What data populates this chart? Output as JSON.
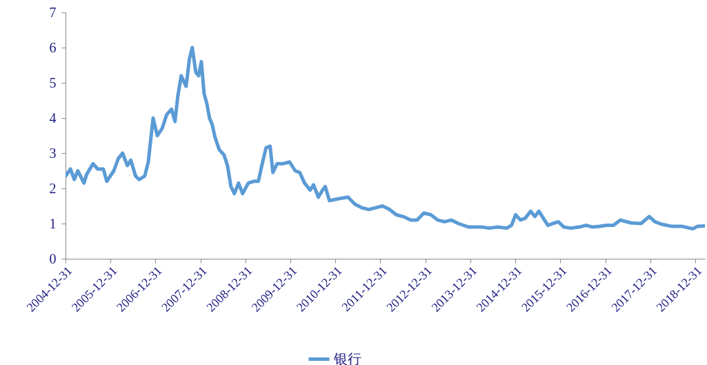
{
  "chart_data": {
    "type": "line",
    "legend": "bottom",
    "grid": false,
    "marker": "none",
    "line_style": "solid",
    "xlim": [
      "2004-12-31",
      "2019-03-20"
    ],
    "xticks": [
      "2004-12-31",
      "2005-12-31",
      "2006-12-31",
      "2007-12-31",
      "2008-12-31",
      "2009-12-31",
      "2010-12-31",
      "2011-12-31",
      "2012-12-31",
      "2013-12-31",
      "2014-12-31",
      "2015-12-31",
      "2016-12-31",
      "2017-12-31",
      "2018-12-31"
    ],
    "ylim": [
      0,
      7
    ],
    "yticks": [
      0,
      1,
      2,
      3,
      4,
      5,
      6,
      7
    ],
    "x": [
      "2005-01-01",
      "2005-02-09",
      "2005-03-12",
      "2005-04-10",
      "2005-05-30",
      "2005-06-21",
      "2005-08-11",
      "2005-09-19",
      "2005-11-03",
      "2005-12-01",
      "2006-01-27",
      "2006-03-05",
      "2006-04-08",
      "2006-05-17",
      "2006-06-14",
      "2006-07-23",
      "2006-08-21",
      "2006-10-05",
      "2006-11-03",
      "2006-12-12",
      "2007-01-15",
      "2007-02-23",
      "2007-04-02",
      "2007-05-11",
      "2007-06-08",
      "2007-06-30",
      "2007-07-28",
      "2007-09-06",
      "2007-10-04",
      "2007-10-26",
      "2007-11-24",
      "2007-12-16",
      "2008-01-08",
      "2008-01-30",
      "2008-02-22",
      "2008-03-14",
      "2008-04-06",
      "2008-04-28",
      "2008-06-01",
      "2008-07-10",
      "2008-08-07",
      "2008-09-04",
      "2008-10-02",
      "2008-11-05",
      "2008-12-08",
      "2009-01-23",
      "2009-03-07",
      "2009-04-15",
      "2009-05-13",
      "2009-06-16",
      "2009-07-19",
      "2009-08-11",
      "2009-09-14",
      "2009-10-29",
      "2009-12-24",
      "2010-02-08",
      "2010-03-17",
      "2010-04-25",
      "2010-06-09",
      "2010-07-07",
      "2010-08-15",
      "2010-09-18",
      "2010-10-10",
      "2010-11-13",
      "2011-01-20",
      "2011-04-13",
      "2011-06-08",
      "2011-08-03",
      "2011-09-28",
      "2011-11-23",
      "2012-01-18",
      "2012-03-14",
      "2012-05-09",
      "2012-07-04",
      "2012-09-04",
      "2012-10-24",
      "2012-12-19",
      "2013-02-14",
      "2013-04-10",
      "2013-06-05",
      "2013-07-31",
      "2013-09-25",
      "2013-12-18",
      "2014-04-08",
      "2014-06-03",
      "2014-08-10",
      "2014-10-22",
      "2014-11-30",
      "2015-01-03",
      "2015-02-11",
      "2015-03-21",
      "2015-05-05",
      "2015-06-08",
      "2015-07-11",
      "2015-08-25",
      "2015-09-22",
      "2015-10-31",
      "2015-12-15",
      "2016-01-30",
      "2016-03-25",
      "2016-06-01",
      "2016-07-26",
      "2016-09-21",
      "2016-11-16",
      "2017-01-11",
      "2017-03-07",
      "2017-05-02",
      "2017-07-25",
      "2017-10-17",
      "2017-12-23",
      "2018-02-07",
      "2018-04-03",
      "2018-06-26",
      "2018-09-18",
      "2018-12-11",
      "2019-01-19",
      "2019-03-15"
    ],
    "series": [
      {
        "name": "银行",
        "color": "#5b9bd5",
        "values": [
          2.35,
          2.55,
          2.25,
          2.5,
          2.15,
          2.4,
          2.7,
          2.55,
          2.55,
          2.2,
          2.5,
          2.85,
          3.0,
          2.65,
          2.8,
          2.35,
          2.25,
          2.35,
          2.75,
          4.0,
          3.5,
          3.7,
          4.1,
          4.25,
          3.9,
          4.6,
          5.2,
          4.9,
          5.7,
          6.0,
          5.3,
          5.2,
          5.6,
          4.7,
          4.4,
          4.0,
          3.8,
          3.45,
          3.1,
          2.95,
          2.65,
          2.05,
          1.85,
          2.15,
          1.85,
          2.15,
          2.2,
          2.2,
          2.65,
          3.15,
          3.2,
          2.45,
          2.7,
          2.7,
          2.75,
          2.5,
          2.45,
          2.15,
          1.95,
          2.1,
          1.75,
          1.95,
          2.05,
          1.65,
          1.7,
          1.75,
          1.55,
          1.45,
          1.4,
          1.45,
          1.5,
          1.4,
          1.25,
          1.2,
          1.1,
          1.1,
          1.3,
          1.25,
          1.1,
          1.05,
          1.1,
          1.0,
          0.9,
          0.9,
          0.87,
          0.9,
          0.87,
          0.95,
          1.25,
          1.1,
          1.15,
          1.35,
          1.2,
          1.35,
          1.1,
          0.95,
          1.0,
          1.05,
          0.9,
          0.87,
          0.9,
          0.95,
          0.9,
          0.92,
          0.95,
          0.95,
          1.1,
          1.02,
          1.0,
          1.2,
          1.05,
          0.98,
          0.92,
          0.92,
          0.85,
          0.92,
          0.93
        ]
      }
    ]
  }
}
